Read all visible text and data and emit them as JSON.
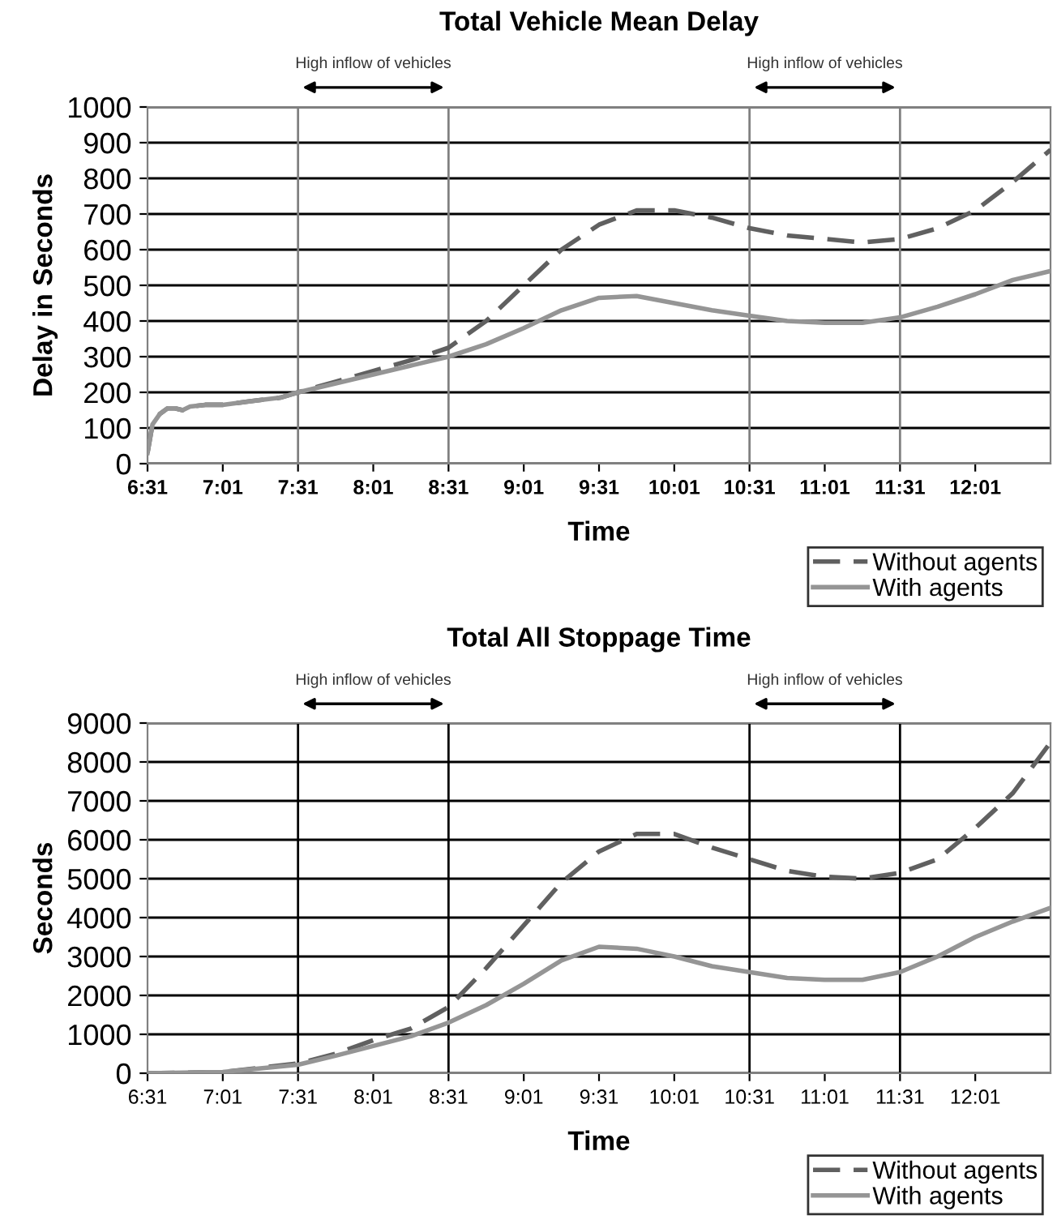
{
  "chart_data": [
    {
      "type": "line",
      "title": "Total Vehicle Mean Delay",
      "xlabel": "Time",
      "ylabel": "Delay in Seconds",
      "x": [
        6.517,
        6.55,
        6.6,
        6.65,
        6.7,
        6.75,
        6.8,
        6.9,
        7.017,
        7.2,
        7.4,
        7.517,
        7.767,
        8.017,
        8.267,
        8.517,
        8.767,
        9.017,
        9.267,
        9.517,
        9.767,
        10.017,
        10.267,
        10.517,
        10.767,
        11.017,
        11.267,
        11.517,
        11.767,
        12.017,
        12.267,
        12.517
      ],
      "series": [
        {
          "name": "Without agents",
          "color": "#606060",
          "line_style": "dashed",
          "values": [
            30,
            110,
            140,
            155,
            155,
            150,
            160,
            165,
            165,
            175,
            185,
            200,
            230,
            260,
            290,
            325,
            400,
            500,
            600,
            670,
            710,
            710,
            690,
            660,
            640,
            630,
            620,
            630,
            660,
            710,
            790,
            880
          ]
        },
        {
          "name": "With agents",
          "color": "#959595",
          "line_style": "solid",
          "values": [
            30,
            110,
            140,
            155,
            155,
            150,
            160,
            165,
            165,
            175,
            185,
            200,
            225,
            250,
            275,
            300,
            335,
            380,
            430,
            465,
            470,
            450,
            430,
            415,
            400,
            395,
            395,
            410,
            440,
            475,
            515,
            540
          ]
        }
      ],
      "xlim": [
        6.517,
        12.517
      ],
      "xticks": [
        {
          "value": 6.517,
          "label": "6:31"
        },
        {
          "value": 7.017,
          "label": "7:01"
        },
        {
          "value": 7.517,
          "label": "7:31"
        },
        {
          "value": 8.017,
          "label": "8:01"
        },
        {
          "value": 8.517,
          "label": "8:31"
        },
        {
          "value": 9.017,
          "label": "9:01"
        },
        {
          "value": 9.517,
          "label": "9:31"
        },
        {
          "value": 10.017,
          "label": "10:01"
        },
        {
          "value": 10.517,
          "label": "10:31"
        },
        {
          "value": 11.017,
          "label": "11:01"
        },
        {
          "value": 11.517,
          "label": "11:31"
        },
        {
          "value": 12.017,
          "label": "12:01"
        }
      ],
      "ylim": [
        0,
        1000
      ],
      "yticks": [
        0,
        100,
        200,
        300,
        400,
        500,
        600,
        700,
        800,
        900,
        1000
      ],
      "grid": "y",
      "legend": "bottom right",
      "marker": "none",
      "ref_lines": [
        {
          "axis": "x",
          "value": 7.517,
          "color": "#808080"
        },
        {
          "axis": "x",
          "value": 8.517,
          "color": "#808080"
        },
        {
          "axis": "x",
          "value": 10.517,
          "color": "#808080"
        },
        {
          "axis": "x",
          "value": 11.517,
          "color": "#808080"
        }
      ],
      "annotations": [
        "High inflow of vehicles",
        "High inflow of vehicles"
      ]
    },
    {
      "type": "line",
      "title": "Total All Stoppage Time",
      "xlabel": "Time",
      "ylabel": "Seconds",
      "x": [
        6.517,
        7.017,
        7.517,
        7.767,
        8.017,
        8.267,
        8.517,
        8.767,
        9.017,
        9.267,
        9.517,
        9.767,
        10.017,
        10.267,
        10.517,
        10.767,
        11.017,
        11.267,
        11.517,
        11.767,
        12.017,
        12.267,
        12.517
      ],
      "series": [
        {
          "name": "Without agents",
          "color": "#606060",
          "line_style": "dashed",
          "values": [
            0,
            30,
            250,
            500,
            850,
            1150,
            1700,
            2700,
            3800,
            4900,
            5700,
            6150,
            6150,
            5800,
            5500,
            5200,
            5050,
            5000,
            5150,
            5500,
            6300,
            7200,
            8500
          ]
        },
        {
          "name": "With agents",
          "color": "#959595",
          "line_style": "solid",
          "values": [
            0,
            30,
            220,
            450,
            700,
            950,
            1300,
            1750,
            2300,
            2900,
            3250,
            3200,
            3000,
            2750,
            2600,
            2450,
            2400,
            2400,
            2600,
            3000,
            3500,
            3900,
            4250
          ]
        }
      ],
      "xlim": [
        6.517,
        12.517
      ],
      "xticks": [
        {
          "value": 6.517,
          "label": "6:31"
        },
        {
          "value": 7.017,
          "label": "7:01"
        },
        {
          "value": 7.517,
          "label": "7:31"
        },
        {
          "value": 8.017,
          "label": "8:01"
        },
        {
          "value": 8.517,
          "label": "8:31"
        },
        {
          "value": 9.017,
          "label": "9:01"
        },
        {
          "value": 9.517,
          "label": "9:31"
        },
        {
          "value": 10.017,
          "label": "10:01"
        },
        {
          "value": 10.517,
          "label": "10:31"
        },
        {
          "value": 11.017,
          "label": "11:01"
        },
        {
          "value": 11.517,
          "label": "11:31"
        },
        {
          "value": 12.017,
          "label": "12:01"
        }
      ],
      "ylim": [
        0,
        9000
      ],
      "yticks": [
        0,
        1000,
        2000,
        3000,
        4000,
        5000,
        6000,
        7000,
        8000,
        9000
      ],
      "grid": "y",
      "legend": "bottom right",
      "marker": "none",
      "ref_lines": [
        {
          "axis": "x",
          "value": 7.517,
          "color": "#000000"
        },
        {
          "axis": "x",
          "value": 8.517,
          "color": "#000000"
        },
        {
          "axis": "x",
          "value": 10.517,
          "color": "#000000"
        },
        {
          "axis": "x",
          "value": 11.517,
          "color": "#000000"
        }
      ],
      "annotations": [
        "High inflow of vehicles",
        "High inflow of vehicles"
      ]
    }
  ]
}
